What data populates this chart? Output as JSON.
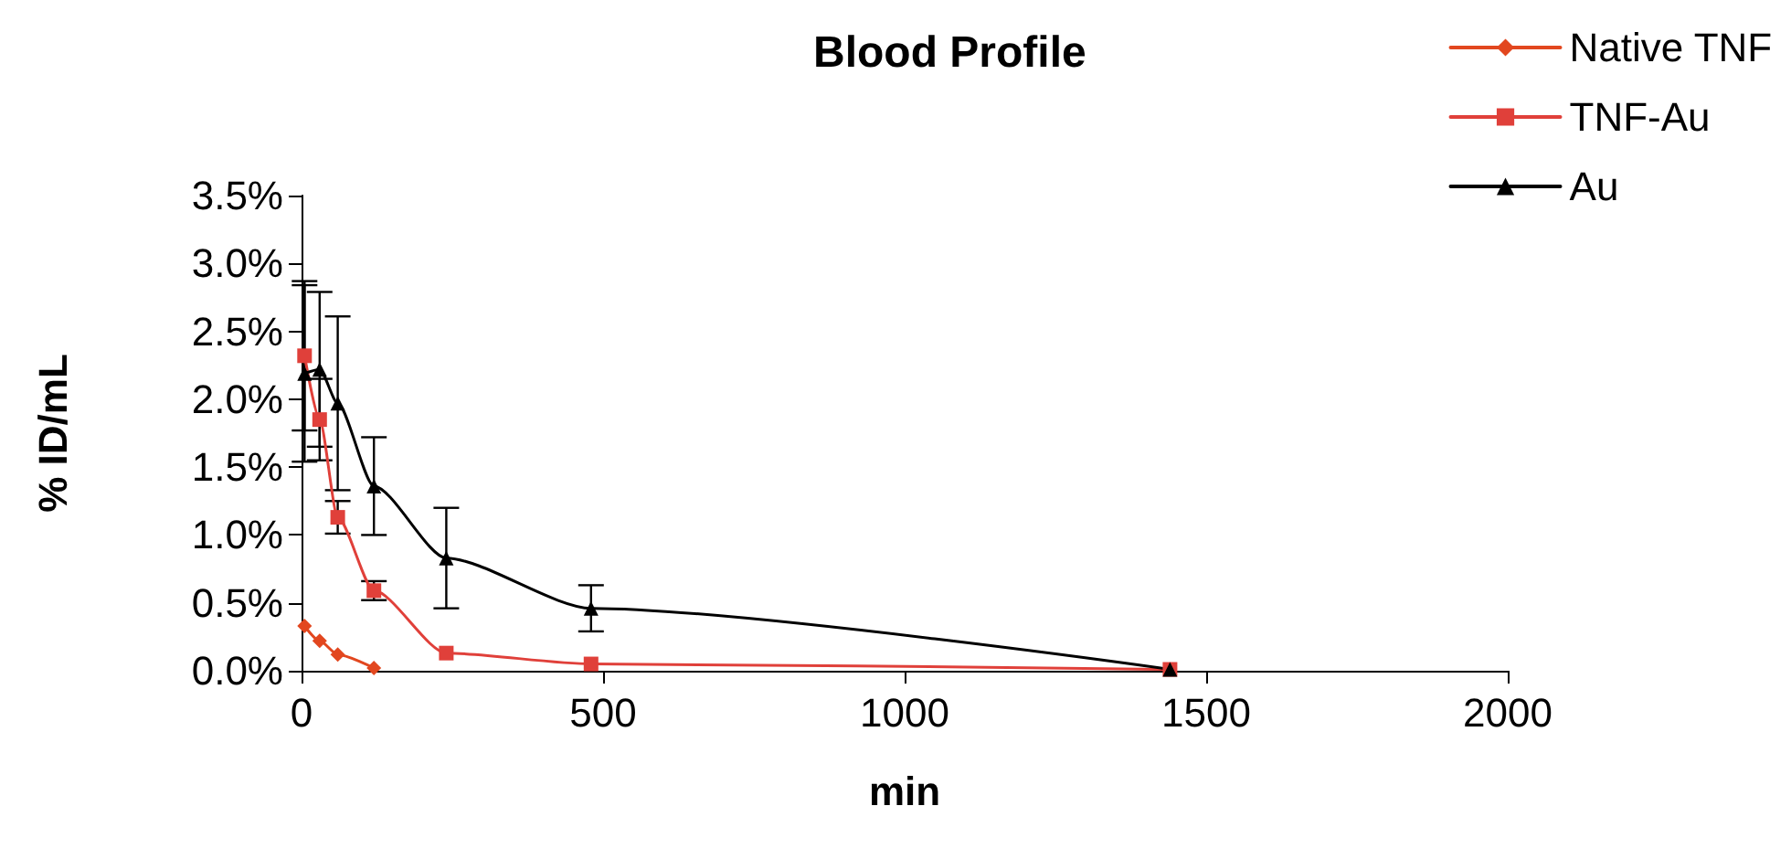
{
  "chart_data": {
    "type": "line",
    "title": "Blood Profile",
    "xlabel": "min",
    "ylabel": "% ID/mL",
    "xlim": [
      0,
      2000
    ],
    "xticks": [
      0,
      500,
      1000,
      1500,
      2000
    ],
    "ylim": [
      0,
      3.5
    ],
    "yticks": [
      {
        "value": 0,
        "label": "0.0%"
      },
      {
        "value": 0.5,
        "label": "0.5%"
      },
      {
        "value": 1,
        "label": "1.0%"
      },
      {
        "value": 1.5,
        "label": "1.5%"
      },
      {
        "value": 2,
        "label": "2.0%"
      },
      {
        "value": 2.5,
        "label": "2.5%"
      },
      {
        "value": 3,
        "label": "3.0%"
      },
      {
        "value": 3.5,
        "label": "3.5%"
      }
    ],
    "grid": false,
    "legend": "top right",
    "line_style": "solid",
    "series": [
      {
        "name": "Native TNF",
        "color": "#e2471f",
        "marker": "diamond",
        "x": [
          5,
          30,
          60,
          120
        ],
        "values": [
          0.33,
          0.22,
          0.12,
          0.02
        ]
      },
      {
        "name": "TNF-Au",
        "color": "#e0403a",
        "marker": "square",
        "x": [
          5,
          30,
          60,
          120,
          240,
          480,
          1440
        ],
        "values": [
          2.32,
          1.85,
          1.13,
          0.59,
          0.13,
          0.05,
          0.01
        ],
        "errors": [
          0.55,
          0.3,
          0.12,
          0.07,
          null,
          null,
          null
        ]
      },
      {
        "name": "Au",
        "color": "#000000",
        "marker": "triangle",
        "x": [
          5,
          30,
          60,
          120,
          240,
          480,
          1440
        ],
        "values": [
          2.19,
          2.22,
          1.97,
          1.36,
          0.83,
          0.46,
          0.01
        ],
        "errors": [
          0.65,
          0.57,
          0.64,
          0.36,
          0.37,
          0.17,
          null
        ]
      }
    ]
  }
}
